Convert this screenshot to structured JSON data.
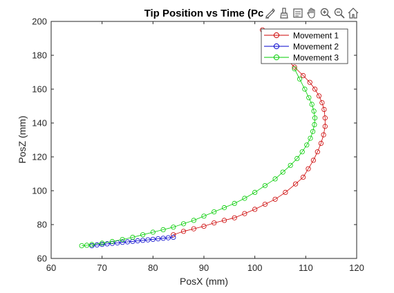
{
  "figure": {
    "title": "Tip Position vs Time (Pc",
    "xlabel": "PosX (mm)",
    "ylabel": "PosZ (mm)"
  },
  "toolbar": {
    "icons": [
      "annotate-icon",
      "brush-icon",
      "data-tips-icon",
      "pan-icon",
      "zoom-in-icon",
      "zoom-out-icon",
      "home-icon"
    ]
  },
  "colors": {
    "movement1": "#cc0000",
    "movement2": "#0000cc",
    "movement3": "#00cc00"
  },
  "chart_data": {
    "type": "line",
    "title": "Tip Position vs Time (Pc",
    "xlabel": "PosX (mm)",
    "ylabel": "PosZ (mm)",
    "xlim": [
      60,
      120
    ],
    "ylim": [
      60,
      200
    ],
    "xticks": [
      60,
      70,
      80,
      90,
      100,
      110,
      120
    ],
    "yticks": [
      60,
      80,
      100,
      120,
      140,
      160,
      180,
      200
    ],
    "grid": false,
    "legend_position": "top-right",
    "series": [
      {
        "name": "Movement 1",
        "marker": "circle",
        "x": [
          84,
          86,
          88,
          90,
          92,
          94,
          96,
          98,
          100,
          102,
          104,
          106,
          108,
          109.5,
          110.5,
          111.5,
          112.3,
          113,
          113.5,
          113.8,
          113.8,
          113.6,
          113.2,
          112.6,
          111.8,
          110.8,
          109.5,
          107.8,
          105.8,
          103.5,
          101.5
        ],
        "y": [
          74,
          76,
          77.5,
          79,
          81,
          82.5,
          84,
          86.5,
          89,
          92,
          95,
          99,
          104,
          108,
          113,
          118,
          123,
          128,
          133,
          138,
          143,
          148,
          152,
          156,
          160,
          164,
          168,
          173,
          179,
          187,
          195
        ]
      },
      {
        "name": "Movement 2",
        "marker": "circle",
        "x": [
          68,
          69,
          70,
          71,
          72,
          73,
          74,
          75,
          76,
          77,
          78,
          79,
          80,
          81,
          82,
          83,
          84
        ],
        "y": [
          67.5,
          68,
          68.3,
          68.6,
          68.9,
          69.2,
          69.5,
          69.8,
          70.1,
          70.4,
          70.7,
          71,
          71.3,
          71.6,
          71.9,
          72.2,
          72.5
        ]
      },
      {
        "name": "Movement 3",
        "marker": "circle",
        "x": [
          66,
          67,
          68,
          70,
          72,
          74,
          76,
          78,
          80,
          82,
          84,
          86,
          88,
          90,
          92,
          94,
          96,
          98,
          100,
          102,
          104,
          105.5,
          107,
          108.3,
          109.3,
          110.2,
          110.9,
          111.4,
          111.7,
          111.8,
          111.6,
          111.2,
          110.6,
          109.8,
          108.8,
          107.8
        ],
        "y": [
          67.5,
          67.8,
          68.2,
          69,
          70,
          71.2,
          72.5,
          74,
          75.5,
          77,
          78.5,
          80.5,
          82.5,
          85,
          87.5,
          90,
          92.5,
          95.5,
          99,
          103,
          107,
          111,
          115,
          119,
          123,
          127,
          131,
          135,
          139,
          143,
          147,
          151,
          155,
          160,
          166,
          172
        ]
      }
    ]
  }
}
